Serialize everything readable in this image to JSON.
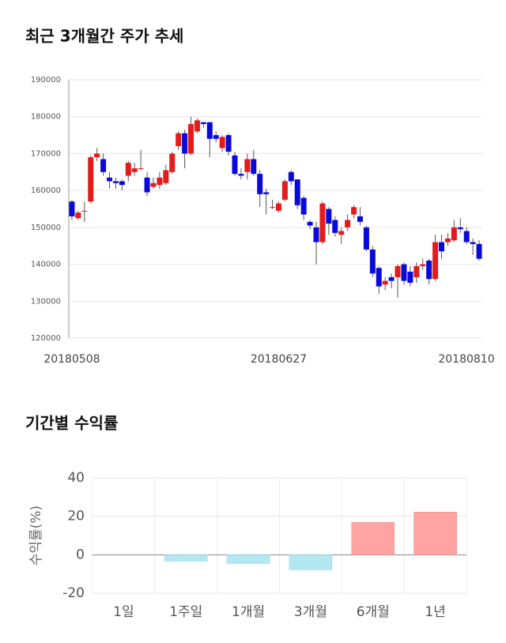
{
  "chart_data": [
    {
      "type": "candlestick",
      "title": "최근 3개월간 주가 추세",
      "categories": [
        "20180508",
        null,
        null,
        null,
        null,
        null,
        null,
        null,
        null,
        null,
        null,
        null,
        null,
        null,
        null,
        null,
        null,
        null,
        null,
        null,
        null,
        null,
        null,
        null,
        null,
        null,
        null,
        null,
        null,
        null,
        null,
        null,
        null,
        "20180627",
        null,
        null,
        null,
        null,
        null,
        null,
        null,
        null,
        null,
        null,
        null,
        null,
        null,
        null,
        null,
        null,
        null,
        null,
        null,
        null,
        null,
        null,
        null,
        null,
        null,
        null,
        null,
        null,
        null,
        null,
        null,
        "20180810"
      ],
      "open": [
        157000,
        152500,
        154500,
        157000,
        169000,
        168500,
        163500,
        162500,
        162500,
        164000,
        165000,
        166000,
        163500,
        161000,
        161500,
        162000,
        165000,
        172000,
        175500,
        170000,
        176000,
        178500,
        178500,
        175000,
        171500,
        175000,
        169500,
        164500,
        165000,
        168500,
        164500,
        159500,
        155500,
        154500,
        157500,
        165000,
        163000,
        158000,
        151500,
        150000,
        146000,
        155000,
        152000,
        148000,
        150000,
        153500,
        153000,
        150000,
        144000,
        139000,
        134500,
        136500,
        136500,
        140000,
        138000,
        136500,
        139500,
        141000,
        136000,
        146000,
        146000,
        146500,
        150000,
        149000,
        146000,
        145500
      ],
      "high": [
        157500,
        154500,
        157000,
        169500,
        171500,
        170000,
        165000,
        163500,
        163000,
        168000,
        167500,
        171000,
        165000,
        163500,
        165000,
        167000,
        170500,
        176000,
        176500,
        180000,
        179500,
        178500,
        178500,
        176000,
        175000,
        175500,
        170500,
        166000,
        170000,
        171000,
        165500,
        160500,
        157500,
        157000,
        163000,
        165500,
        163000,
        158500,
        152000,
        151500,
        157000,
        155500,
        153000,
        150000,
        153500,
        156000,
        155500,
        150500,
        145000,
        139500,
        136500,
        137500,
        140000,
        140500,
        139500,
        140500,
        141500,
        141500,
        148000,
        148000,
        148500,
        152000,
        152500,
        150000,
        147000,
        146500
      ],
      "low": [
        152000,
        152000,
        151500,
        156500,
        168000,
        164000,
        160500,
        160500,
        160000,
        162500,
        164000,
        165500,
        158500,
        160500,
        160500,
        161500,
        164500,
        171000,
        166000,
        169500,
        175500,
        177000,
        169000,
        173000,
        170500,
        169500,
        164000,
        163000,
        163000,
        164000,
        155500,
        153500,
        155000,
        154000,
        157000,
        161500,
        155000,
        152000,
        149500,
        140000,
        145500,
        148000,
        147500,
        145500,
        149000,
        152500,
        150500,
        143500,
        136500,
        132000,
        133000,
        133500,
        131000,
        134500,
        134000,
        135000,
        138500,
        134500,
        135500,
        141500,
        145000,
        146000,
        148500,
        145500,
        142500,
        141000
      ],
      "close": [
        153000,
        154000,
        154500,
        169000,
        170000,
        165000,
        162500,
        162000,
        161500,
        167500,
        166000,
        166000,
        159500,
        162000,
        163500,
        165500,
        170000,
        175500,
        170000,
        178000,
        179000,
        178000,
        174000,
        174000,
        174500,
        170500,
        164500,
        164000,
        168500,
        164500,
        159000,
        159000,
        155500,
        156500,
        162500,
        162500,
        156000,
        153500,
        150500,
        146000,
        156500,
        151000,
        148500,
        149000,
        152000,
        155500,
        151500,
        144000,
        137500,
        134000,
        135500,
        135500,
        139500,
        135500,
        135000,
        139500,
        140000,
        136000,
        146000,
        143500,
        147000,
        150000,
        149500,
        146000,
        145500,
        141500
      ],
      "up_color": "#e31b1b",
      "down_color": "#0a0ad8",
      "ylim": [
        120000,
        190000
      ],
      "yticks": [
        120000,
        130000,
        140000,
        150000,
        160000,
        170000,
        180000,
        190000
      ],
      "grid": true
    },
    {
      "type": "bar",
      "title": "기간별 수익률",
      "y_label": "수익률(%)",
      "categories": [
        "1일",
        "1주일",
        "1개월",
        "3개월",
        "6개월",
        "1년"
      ],
      "values": [
        0,
        -3.3,
        -4.5,
        -7.8,
        16.9,
        22.2
      ],
      "positive_color": "#ffa3a3",
      "negative_color": "#b3e8f2",
      "ylim": [
        -20,
        40
      ],
      "yticks": [
        -20,
        0,
        20,
        40
      ],
      "grid": true
    }
  ]
}
